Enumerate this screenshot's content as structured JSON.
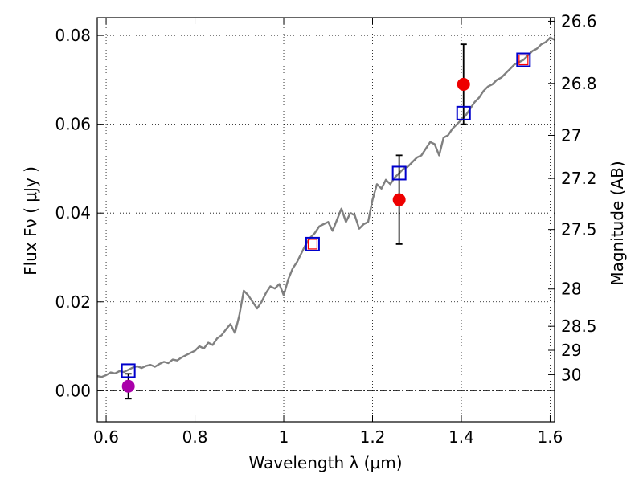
{
  "chart_data": {
    "type": "scatter",
    "xlabel": "Wavelength  λ (μm)",
    "ylabel": "Flux  Fν  ( μJy )",
    "y2label": "Magnitude (AB)",
    "xlim": [
      0.58,
      1.61
    ],
    "ylim": [
      -0.007,
      0.084
    ],
    "grid": true,
    "x_ticks": [
      {
        "value": 0.6,
        "label": "0.6"
      },
      {
        "value": 0.8,
        "label": "0.8"
      },
      {
        "value": 1.0,
        "label": "1"
      },
      {
        "value": 1.2,
        "label": "1.2"
      },
      {
        "value": 1.4,
        "label": "1.4"
      },
      {
        "value": 1.6,
        "label": "1.6"
      }
    ],
    "y_ticks": [
      {
        "value": 0.0,
        "label": "0.00"
      },
      {
        "value": 0.02,
        "label": "0.02"
      },
      {
        "value": 0.04,
        "label": "0.04"
      },
      {
        "value": 0.06,
        "label": "0.06"
      },
      {
        "value": 0.08,
        "label": "0.08"
      }
    ],
    "y2_ticks": [
      {
        "label": "26.6",
        "flux": 0.0832
      },
      {
        "label": "26.8",
        "flux": 0.0692
      },
      {
        "label": "27",
        "flux": 0.0575
      },
      {
        "label": "27.2",
        "flux": 0.0478
      },
      {
        "label": "27.5",
        "flux": 0.0363
      },
      {
        "label": "28",
        "flux": 0.0229
      },
      {
        "label": "28.5",
        "flux": 0.0145
      },
      {
        "label": "29",
        "flux": 0.0091
      },
      {
        "label": "30",
        "flux": 0.0036
      }
    ],
    "zero_line": 0.0,
    "model_spectrum": {
      "color": "#808080",
      "points": [
        [
          0.58,
          0.0033
        ],
        [
          0.59,
          0.0031
        ],
        [
          0.6,
          0.0035
        ],
        [
          0.61,
          0.0041
        ],
        [
          0.62,
          0.0039
        ],
        [
          0.63,
          0.0044
        ],
        [
          0.64,
          0.0042
        ],
        [
          0.65,
          0.0047
        ],
        [
          0.66,
          0.0052
        ],
        [
          0.67,
          0.0055
        ],
        [
          0.68,
          0.0051
        ],
        [
          0.69,
          0.0056
        ],
        [
          0.7,
          0.0058
        ],
        [
          0.71,
          0.0054
        ],
        [
          0.72,
          0.006
        ],
        [
          0.73,
          0.0065
        ],
        [
          0.74,
          0.0062
        ],
        [
          0.75,
          0.007
        ],
        [
          0.76,
          0.0068
        ],
        [
          0.77,
          0.0075
        ],
        [
          0.78,
          0.008
        ],
        [
          0.79,
          0.0085
        ],
        [
          0.8,
          0.009
        ],
        [
          0.81,
          0.01
        ],
        [
          0.82,
          0.0095
        ],
        [
          0.83,
          0.0108
        ],
        [
          0.84,
          0.0103
        ],
        [
          0.85,
          0.0118
        ],
        [
          0.86,
          0.0125
        ],
        [
          0.87,
          0.0138
        ],
        [
          0.88,
          0.015
        ],
        [
          0.89,
          0.013
        ],
        [
          0.9,
          0.017
        ],
        [
          0.91,
          0.0225
        ],
        [
          0.92,
          0.0215
        ],
        [
          0.93,
          0.02
        ],
        [
          0.94,
          0.0185
        ],
        [
          0.95,
          0.02
        ],
        [
          0.96,
          0.022
        ],
        [
          0.97,
          0.0235
        ],
        [
          0.98,
          0.023
        ],
        [
          0.99,
          0.024
        ],
        [
          1.0,
          0.0215
        ],
        [
          1.01,
          0.025
        ],
        [
          1.02,
          0.0275
        ],
        [
          1.03,
          0.029
        ],
        [
          1.04,
          0.031
        ],
        [
          1.05,
          0.033
        ],
        [
          1.06,
          0.0345
        ],
        [
          1.07,
          0.0355
        ],
        [
          1.08,
          0.037
        ],
        [
          1.09,
          0.0375
        ],
        [
          1.1,
          0.038
        ],
        [
          1.11,
          0.036
        ],
        [
          1.12,
          0.0385
        ],
        [
          1.13,
          0.041
        ],
        [
          1.14,
          0.038
        ],
        [
          1.15,
          0.04
        ],
        [
          1.16,
          0.0395
        ],
        [
          1.17,
          0.0365
        ],
        [
          1.18,
          0.0375
        ],
        [
          1.19,
          0.038
        ],
        [
          1.2,
          0.043
        ],
        [
          1.21,
          0.0465
        ],
        [
          1.22,
          0.0455
        ],
        [
          1.23,
          0.0475
        ],
        [
          1.24,
          0.0465
        ],
        [
          1.25,
          0.048
        ],
        [
          1.26,
          0.049
        ],
        [
          1.27,
          0.05
        ],
        [
          1.28,
          0.0505
        ],
        [
          1.29,
          0.0515
        ],
        [
          1.3,
          0.0525
        ],
        [
          1.31,
          0.053
        ],
        [
          1.32,
          0.0545
        ],
        [
          1.33,
          0.056
        ],
        [
          1.34,
          0.0555
        ],
        [
          1.35,
          0.053
        ],
        [
          1.36,
          0.057
        ],
        [
          1.37,
          0.0575
        ],
        [
          1.38,
          0.059
        ],
        [
          1.39,
          0.06
        ],
        [
          1.4,
          0.061
        ],
        [
          1.41,
          0.062
        ],
        [
          1.42,
          0.0635
        ],
        [
          1.43,
          0.065
        ],
        [
          1.44,
          0.066
        ],
        [
          1.45,
          0.0675
        ],
        [
          1.46,
          0.0685
        ],
        [
          1.47,
          0.069
        ],
        [
          1.48,
          0.07
        ],
        [
          1.49,
          0.0705
        ],
        [
          1.5,
          0.0715
        ],
        [
          1.51,
          0.0725
        ],
        [
          1.52,
          0.0735
        ],
        [
          1.53,
          0.074
        ],
        [
          1.54,
          0.0745
        ],
        [
          1.55,
          0.0755
        ],
        [
          1.56,
          0.0765
        ],
        [
          1.57,
          0.077
        ],
        [
          1.58,
          0.078
        ],
        [
          1.59,
          0.0785
        ],
        [
          1.6,
          0.0795
        ],
        [
          1.61,
          0.079
        ]
      ]
    },
    "model_photometry": {
      "color": "#0000cc",
      "points": [
        {
          "x": 0.65,
          "y": 0.0045
        },
        {
          "x": 1.065,
          "y": 0.033
        },
        {
          "x": 1.26,
          "y": 0.049
        },
        {
          "x": 1.405,
          "y": 0.0625
        },
        {
          "x": 1.54,
          "y": 0.0745
        }
      ]
    },
    "upper_limits": {
      "color": "#ff0000",
      "points": [
        {
          "x": 1.065,
          "y": 0.033
        },
        {
          "x": 1.54,
          "y": 0.0745
        }
      ]
    },
    "observed": {
      "points": [
        {
          "x": 0.65,
          "y": 0.001,
          "err": 0.0028,
          "color": "#aa00aa"
        },
        {
          "x": 1.26,
          "y": 0.043,
          "err": 0.01,
          "color": "#ee0000"
        },
        {
          "x": 1.405,
          "y": 0.069,
          "err": 0.009,
          "color": "#ee0000"
        }
      ]
    }
  }
}
